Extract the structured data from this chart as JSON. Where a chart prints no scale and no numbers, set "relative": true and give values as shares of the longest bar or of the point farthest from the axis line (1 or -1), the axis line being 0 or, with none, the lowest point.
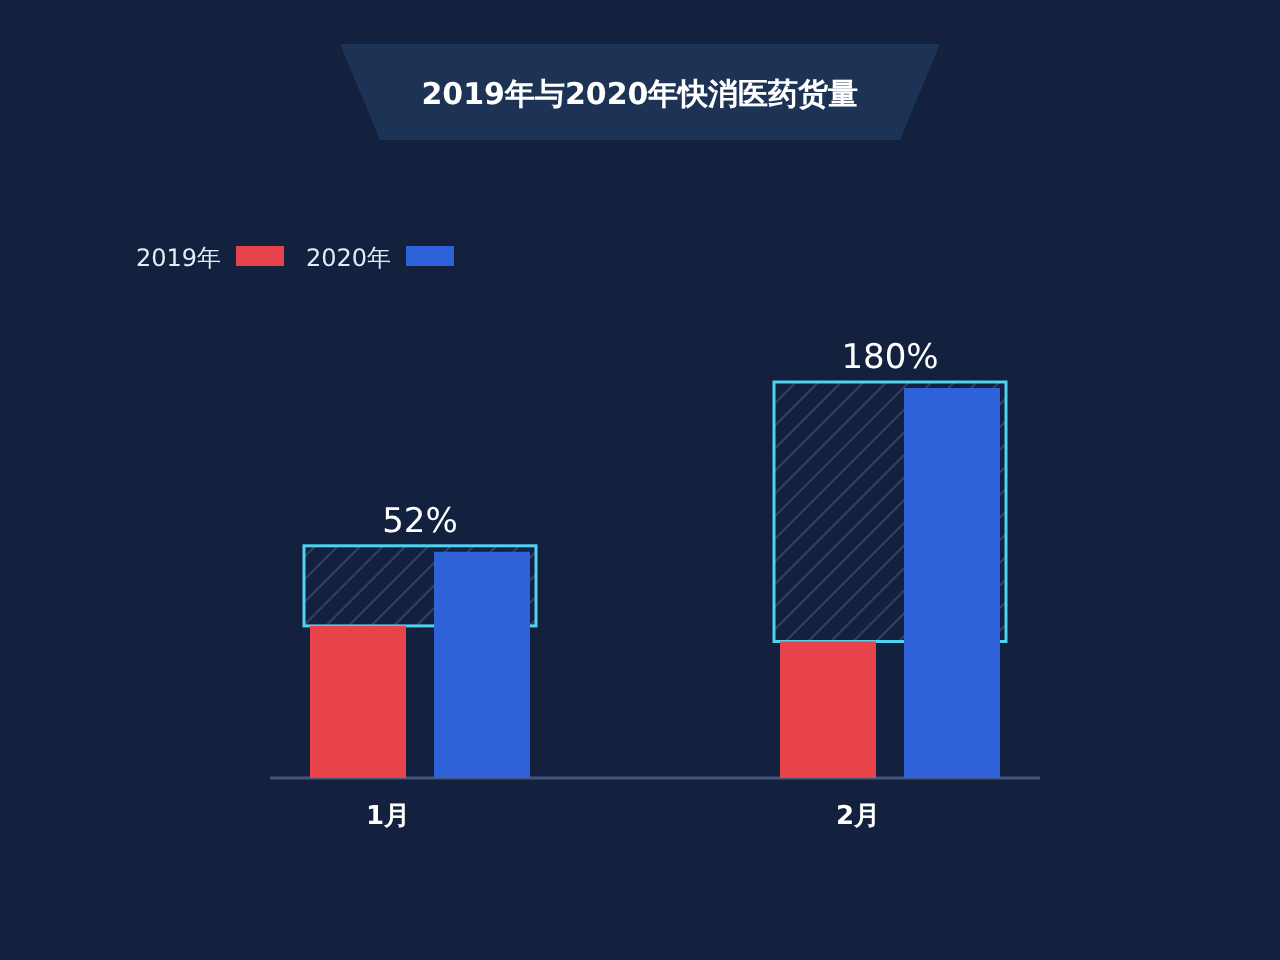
{
  "chart_data": {
    "type": "bar",
    "title": "2019年与2020年快消医药货量",
    "relative": true,
    "categories": [
      "1月",
      "2月"
    ],
    "series": [
      {
        "name": "2019年",
        "color": "#e8434a",
        "values": [
          0.39,
          0.35
        ]
      },
      {
        "name": "2020年",
        "color": "#2f62d8",
        "values": [
          0.58,
          1
        ]
      }
    ],
    "annotations": [
      "52%",
      "180%"
    ],
    "legend": "top left"
  }
}
